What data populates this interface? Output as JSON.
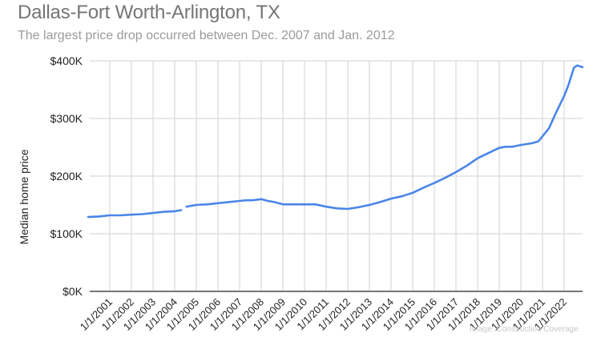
{
  "header": {
    "title": "Dallas-Fort Worth-Arlington, TX",
    "subtitle": "The largest price drop occurred between Dec. 2007 and Jan. 2012"
  },
  "watermark": "Image: Construction Coverage",
  "colors": {
    "line": "#4a86e8",
    "grid": "#d9d9d9",
    "axis": "#757575",
    "title": "#757575",
    "subtitle": "#9a9a9a"
  },
  "chart_data": {
    "type": "line",
    "title": "Dallas-Fort Worth-Arlington, TX",
    "subtitle": "The largest price drop occurred between Dec. 2007 and Jan. 2012",
    "xlabel": "",
    "ylabel": "Median home price",
    "ylim": [
      0,
      400000
    ],
    "xlim": [
      2000.0,
      2022.85
    ],
    "grid": true,
    "legend": "none",
    "y_ticks": [
      {
        "value": 0,
        "label": "$0K"
      },
      {
        "value": 100000,
        "label": "$100K"
      },
      {
        "value": 200000,
        "label": "$200K"
      },
      {
        "value": 300000,
        "label": "$300K"
      },
      {
        "value": 400000,
        "label": "$400K"
      }
    ],
    "x_ticks": [
      {
        "value": 2001,
        "label": "1/1/2001"
      },
      {
        "value": 2002,
        "label": "1/1/2002"
      },
      {
        "value": 2003,
        "label": "1/1/2003"
      },
      {
        "value": 2004,
        "label": "1/1/2004"
      },
      {
        "value": 2005,
        "label": "1/1/2005"
      },
      {
        "value": 2006,
        "label": "1/1/2006"
      },
      {
        "value": 2007,
        "label": "1/1/2007"
      },
      {
        "value": 2008,
        "label": "1/1/2008"
      },
      {
        "value": 2009,
        "label": "1/1/2009"
      },
      {
        "value": 2010,
        "label": "1/1/2010"
      },
      {
        "value": 2011,
        "label": "1/1/2011"
      },
      {
        "value": 2012,
        "label": "1/1/2012"
      },
      {
        "value": 2013,
        "label": "1/1/2013"
      },
      {
        "value": 2014,
        "label": "1/1/2014"
      },
      {
        "value": 2015,
        "label": "1/1/2015"
      },
      {
        "value": 2016,
        "label": "1/1/2016"
      },
      {
        "value": 2017,
        "label": "1/1/2017"
      },
      {
        "value": 2018,
        "label": "1/1/2018"
      },
      {
        "value": 2019,
        "label": "1/1/2019"
      },
      {
        "value": 2020,
        "label": "1/1/2020"
      },
      {
        "value": 2021,
        "label": "1/1/2021"
      },
      {
        "value": 2022,
        "label": "1/1/2022"
      }
    ],
    "series": [
      {
        "name": "Median home price",
        "segments": [
          {
            "x": [
              2000.0,
              2000.5,
              2001.0,
              2001.5,
              2002.0,
              2002.5,
              2003.0,
              2003.5,
              2004.0,
              2004.3
            ],
            "y": [
              129000,
              130000,
              132000,
              132000,
              133000,
              134000,
              136000,
              138000,
              139000,
              141000
            ]
          },
          {
            "x": [
              2004.55,
              2005.0,
              2005.5,
              2006.0,
              2006.5,
              2007.0,
              2007.3,
              2007.6,
              2008.0,
              2008.3,
              2008.6,
              2009.0,
              2009.5,
              2010.0,
              2010.5,
              2011.0,
              2011.5,
              2012.0,
              2012.5,
              2013.0,
              2013.5,
              2014.0,
              2014.5,
              2015.0,
              2015.5,
              2016.0,
              2016.5,
              2017.0,
              2017.5,
              2018.0,
              2018.5,
              2019.0,
              2019.3,
              2019.6,
              2020.0,
              2020.5,
              2020.8,
              2021.0,
              2021.3,
              2021.6,
              2022.0,
              2022.2,
              2022.45,
              2022.6,
              2022.85
            ],
            "y": [
              147000,
              150000,
              151000,
              153000,
              155000,
              157000,
              158000,
              158000,
              160000,
              157000,
              155000,
              151000,
              151000,
              151000,
              151000,
              147000,
              144000,
              143000,
              146000,
              150000,
              155000,
              161000,
              165000,
              171000,
              180000,
              188000,
              197000,
              207000,
              218000,
              231000,
              240000,
              249000,
              251000,
              251000,
              254000,
              257000,
              260000,
              269000,
              283000,
              308000,
              339000,
              358000,
              388000,
              392000,
              389000
            ]
          }
        ]
      }
    ]
  }
}
